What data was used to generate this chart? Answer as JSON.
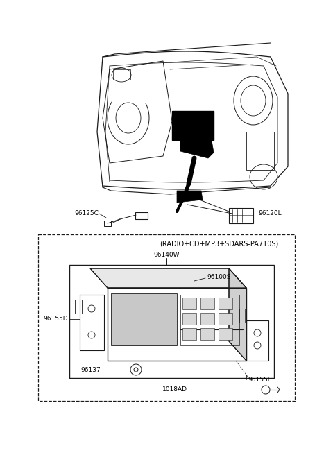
{
  "bg_color": "#ffffff",
  "fig_width": 4.8,
  "fig_height": 6.56,
  "dpi": 100,
  "line_color": "#1a1a1a",
  "text_color": "#000000",
  "label_fontsize": 6.5,
  "bracket_label": "(RADIO+CD+MP3+SDARS-PA710S)",
  "part_96140W": "96140W",
  "part_96100S": "96100S",
  "part_96155D": "96155D",
  "part_96137": "96137",
  "part_96155E": "96155E",
  "part_1018AD": "1018AD",
  "part_96125C": "96125C",
  "part_96120L": "96120L"
}
